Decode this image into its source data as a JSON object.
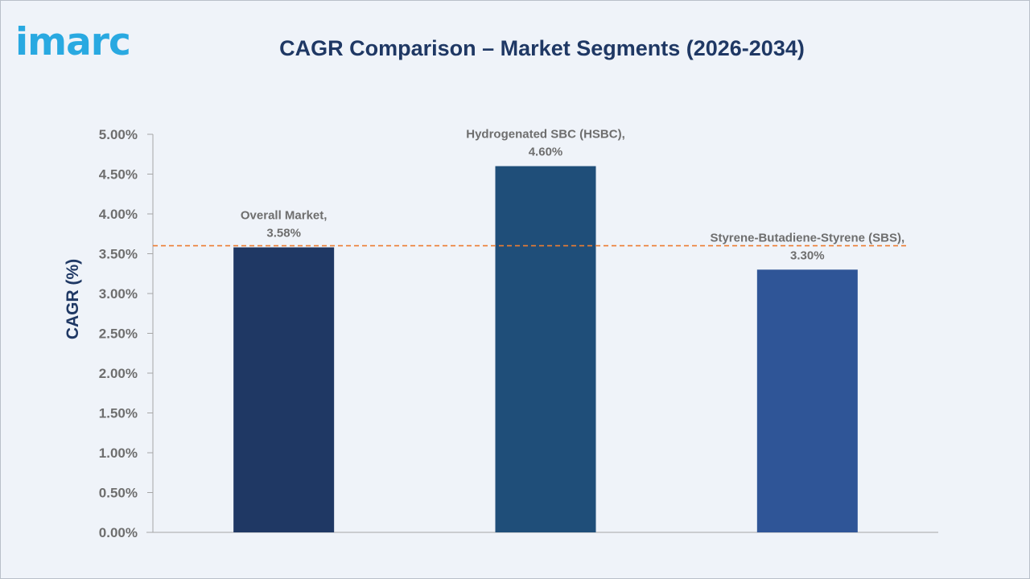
{
  "brand": {
    "logo_text": "imarc",
    "logo_color": "#29a9e1"
  },
  "colors": {
    "reference_line": "#ed7d31",
    "axis": "#a6a6a6",
    "title": "#1f3864",
    "label": "#6e6e6e"
  },
  "chart_data": {
    "type": "bar",
    "title": "CAGR Comparison – Market Segments (2026-2034)",
    "xlabel": "",
    "ylabel": "CAGR (%)",
    "ylim": [
      0,
      5
    ],
    "y_ticks": [
      "0.00%",
      "0.50%",
      "1.00%",
      "1.50%",
      "2.00%",
      "2.50%",
      "3.00%",
      "3.50%",
      "4.00%",
      "4.50%",
      "5.00%"
    ],
    "categories": [
      "Overall Market",
      "Hydrogenated SBC (HSBC)",
      "Styrene-Butadiene-Styrene (SBS)"
    ],
    "values": [
      3.58,
      4.6,
      3.3
    ],
    "data_labels": [
      [
        "Overall Market,",
        "3.58%"
      ],
      [
        "Hydrogenated SBC (HSBC),",
        "4.60%"
      ],
      [
        "Styrene-Butadiene-Styrene (SBS),",
        "3.30%"
      ]
    ],
    "bar_colors": [
      "#1f3864",
      "#1f4e79",
      "#2f5597"
    ],
    "reference_line": {
      "value": 3.6,
      "style": "dashed"
    },
    "grid": false,
    "legend": "none"
  }
}
